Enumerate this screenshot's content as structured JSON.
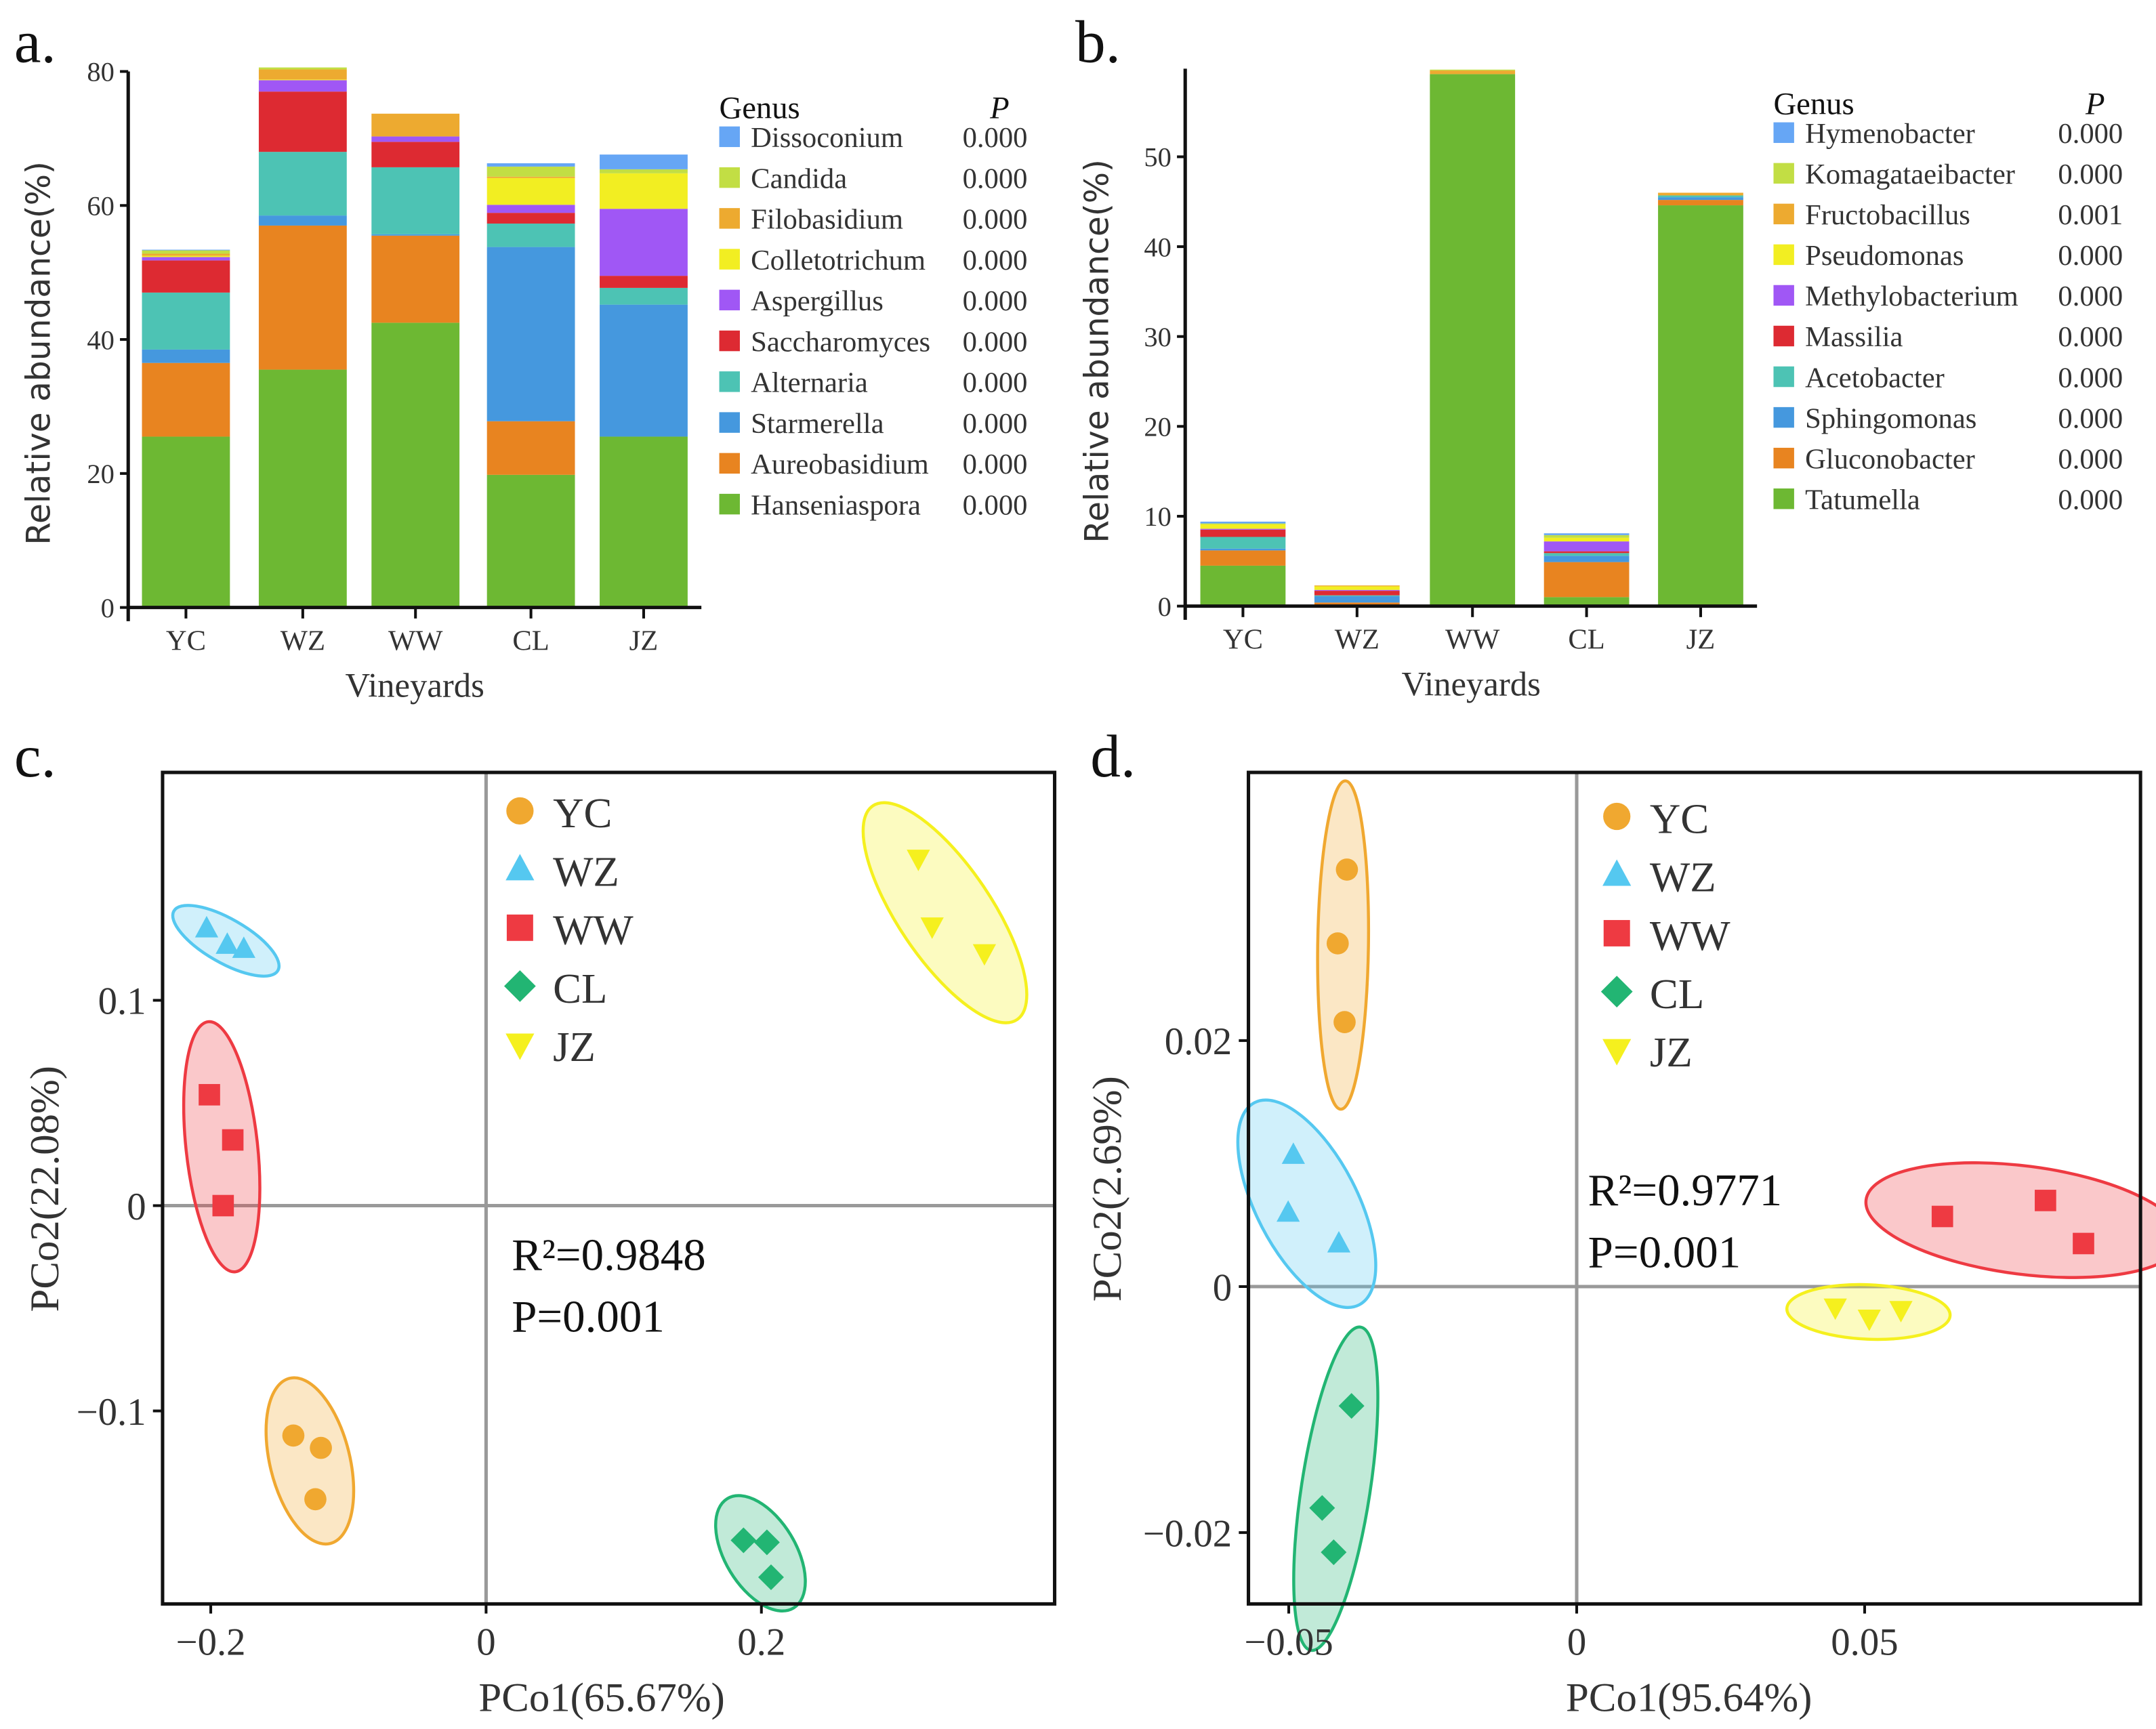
{
  "chart_data": [
    {
      "type": "bar",
      "panel_label": "a.",
      "stacked": true,
      "xlabel": "Vineyards",
      "ylabel": "Relative abundance(%)",
      "ylim": [
        0,
        80
      ],
      "yticks": [
        "0",
        "20",
        "40",
        "60",
        "80"
      ],
      "categories": [
        "YC",
        "WZ",
        "WW",
        "CL",
        "JZ"
      ],
      "legend_title": "Genus",
      "legend_p_header": "P",
      "legend_position": "right",
      "series": [
        {
          "name": "Hanseniaspora",
          "p": "0.000",
          "color": "#6DB833",
          "values": [
            25.5,
            35.5,
            42.5,
            19.8,
            25.5
          ]
        },
        {
          "name": "Aureobasidium",
          "p": "0.000",
          "color": "#E88420",
          "values": [
            11.0,
            21.5,
            13.0,
            8.0,
            0.0
          ]
        },
        {
          "name": "Starmerella",
          "p": "0.000",
          "color": "#4598DE",
          "values": [
            2.0,
            1.5,
            0.2,
            26.0,
            19.7
          ]
        },
        {
          "name": "Alternaria",
          "p": "0.000",
          "color": "#4DC3B4",
          "values": [
            8.5,
            9.5,
            10.0,
            3.5,
            2.5
          ]
        },
        {
          "name": "Saccharomyces",
          "p": "0.000",
          "color": "#DD2A32",
          "values": [
            4.8,
            9.0,
            3.8,
            1.6,
            1.8
          ]
        },
        {
          "name": "Aspergillus",
          "p": "0.000",
          "color": "#A057F5",
          "values": [
            0.5,
            1.7,
            0.8,
            1.2,
            10.0
          ]
        },
        {
          "name": "Colletotrichum",
          "p": "0.000",
          "color": "#F2EE22",
          "values": [
            0.2,
            0.1,
            0.0,
            4.0,
            5.3
          ]
        },
        {
          "name": "Filobasidium",
          "p": "0.000",
          "color": "#EDAA30",
          "values": [
            0.3,
            1.5,
            3.4,
            0.2,
            0.0
          ]
        },
        {
          "name": "Candida",
          "p": "0.000",
          "color": "#C2DE44",
          "values": [
            0.5,
            0.3,
            0.0,
            1.5,
            0.6
          ]
        },
        {
          "name": "Dissoconium",
          "p": "0.000",
          "color": "#66A6F5",
          "values": [
            0.1,
            0.0,
            0.0,
            0.5,
            2.2
          ]
        }
      ]
    },
    {
      "type": "bar",
      "panel_label": "b.",
      "stacked": true,
      "xlabel": "Vineyards",
      "ylabel": "Relative abundance(%)",
      "ylim": [
        0,
        59.8
      ],
      "yticks": [
        "0",
        "10",
        "20",
        "30",
        "40",
        "50"
      ],
      "categories": [
        "YC",
        "WZ",
        "WW",
        "CL",
        "JZ"
      ],
      "legend_title": "Genus",
      "legend_p_header": "P",
      "legend_position": "right",
      "series": [
        {
          "name": "Tatumella",
          "p": "0.000",
          "color": "#6DB833",
          "values": [
            4.5,
            0.1,
            59.2,
            1.0,
            44.6
          ]
        },
        {
          "name": "Gluconobacter",
          "p": "0.000",
          "color": "#E88420",
          "values": [
            1.7,
            0.3,
            0.0,
            3.9,
            0.6
          ]
        },
        {
          "name": "Sphingomonas",
          "p": "0.000",
          "color": "#4598DE",
          "values": [
            0.2,
            0.7,
            0.0,
            0.7,
            0.3
          ]
        },
        {
          "name": "Acetobacter",
          "p": "0.000",
          "color": "#4DC3B4",
          "values": [
            1.3,
            0.1,
            0.0,
            0.3,
            0.2
          ]
        },
        {
          "name": "Massilia",
          "p": "0.000",
          "color": "#DD2A32",
          "values": [
            0.8,
            0.5,
            0.0,
            0.2,
            0.0
          ]
        },
        {
          "name": "Methylobacterium",
          "p": "0.000",
          "color": "#A057F5",
          "values": [
            0.1,
            0.1,
            0.0,
            1.1,
            0.0
          ]
        },
        {
          "name": "Pseudomonas",
          "p": "0.000",
          "color": "#F2EE22",
          "values": [
            0.5,
            0.4,
            0.0,
            0.4,
            0.0
          ]
        },
        {
          "name": "Fructobacillus",
          "p": "0.001",
          "color": "#EDAA30",
          "values": [
            0.0,
            0.1,
            0.4,
            0.0,
            0.3
          ]
        },
        {
          "name": "Komagataeibacter",
          "p": "0.000",
          "color": "#C2DE44",
          "values": [
            0.1,
            0.0,
            0.1,
            0.3,
            0.0
          ]
        },
        {
          "name": "Hymenobacter",
          "p": "0.000",
          "color": "#66A6F5",
          "values": [
            0.2,
            0.0,
            0.0,
            0.2,
            0.0
          ]
        }
      ]
    },
    {
      "type": "scatter",
      "panel_label": "c.",
      "xlabel": "PCo1(65.67%)",
      "ylabel": "PCo2(22.08%)",
      "xlim": [
        -0.235,
        0.413
      ],
      "ylim": [
        -0.194,
        0.211
      ],
      "xticks": [
        {
          "v": -0.2,
          "label": "−0.2"
        },
        {
          "v": 0,
          "label": "0"
        },
        {
          "v": 0.2,
          "label": "0.2"
        }
      ],
      "yticks": [
        {
          "v": -0.1,
          "label": "−0.1"
        },
        {
          "v": 0,
          "label": "0"
        },
        {
          "v": 0.1,
          "label": "0.1"
        }
      ],
      "stat_r2": "R²=0.9848",
      "stat_p": "P=0.001",
      "legend_position": "top-center",
      "groups": [
        {
          "name": "YC",
          "marker": "circle",
          "color": "#F0A830",
          "points": [
            [
              -0.14,
              -0.112
            ],
            [
              -0.12,
              -0.118
            ],
            [
              -0.124,
              -0.143
            ]
          ]
        },
        {
          "name": "WZ",
          "marker": "triangle-up",
          "color": "#55C8F0",
          "points": [
            [
              -0.203,
              0.135
            ],
            [
              -0.188,
              0.127
            ],
            [
              -0.176,
              0.125
            ]
          ]
        },
        {
          "name": "WW",
          "marker": "square",
          "color": "#EE3A42",
          "points": [
            [
              -0.201,
              0.054
            ],
            [
              -0.184,
              0.032
            ],
            [
              -0.191,
              0.0
            ]
          ]
        },
        {
          "name": "CL",
          "marker": "diamond",
          "color": "#22B573",
          "points": [
            [
              0.187,
              -0.163
            ],
            [
              0.204,
              -0.164
            ],
            [
              0.207,
              -0.181
            ]
          ]
        },
        {
          "name": "JZ",
          "marker": "triangle-down",
          "color": "#F5F01E",
          "points": [
            [
              0.314,
              0.169
            ],
            [
              0.324,
              0.136
            ],
            [
              0.362,
              0.123
            ]
          ]
        }
      ]
    },
    {
      "type": "scatter",
      "panel_label": "d.",
      "xlabel": "PCo1(95.64%)",
      "ylabel": "PCo2(2.69%)",
      "xlim": [
        -0.057,
        0.0979
      ],
      "ylim": [
        -0.0258,
        0.0418
      ],
      "xticks": [
        {
          "v": -0.05,
          "label": "−0.05"
        },
        {
          "v": 0,
          "label": "0"
        },
        {
          "v": 0.05,
          "label": "0.05"
        }
      ],
      "yticks": [
        {
          "v": -0.02,
          "label": "−0.02"
        },
        {
          "v": 0,
          "label": "0"
        },
        {
          "v": 0.02,
          "label": "0.02"
        }
      ],
      "stat_r2": "R²=0.9771",
      "stat_p": "P=0.001",
      "legend_position": "top-center",
      "groups": [
        {
          "name": "YC",
          "marker": "circle",
          "color": "#F0A830",
          "points": [
            [
              -0.0399,
              0.0339
            ],
            [
              -0.0415,
              0.0279
            ],
            [
              -0.0403,
              0.0215
            ]
          ]
        },
        {
          "name": "WZ",
          "marker": "triangle-up",
          "color": "#55C8F0",
          "points": [
            [
              -0.0492,
              0.0107
            ],
            [
              -0.0501,
              0.006
            ],
            [
              -0.0413,
              0.0035
            ]
          ]
        },
        {
          "name": "WW",
          "marker": "square",
          "color": "#EE3A42",
          "points": [
            [
              0.0635,
              0.0057
            ],
            [
              0.0814,
              0.007
            ],
            [
              0.088,
              0.0035
            ]
          ]
        },
        {
          "name": "CL",
          "marker": "diamond",
          "color": "#22B573",
          "points": [
            [
              -0.0391,
              -0.0097
            ],
            [
              -0.0442,
              -0.018
            ],
            [
              -0.0422,
              -0.0216
            ]
          ]
        },
        {
          "name": "JZ",
          "marker": "triangle-down",
          "color": "#F5F01E",
          "points": [
            [
              0.0449,
              -0.0017
            ],
            [
              0.0508,
              -0.0026
            ],
            [
              0.0563,
              -0.0019
            ]
          ]
        }
      ]
    }
  ]
}
